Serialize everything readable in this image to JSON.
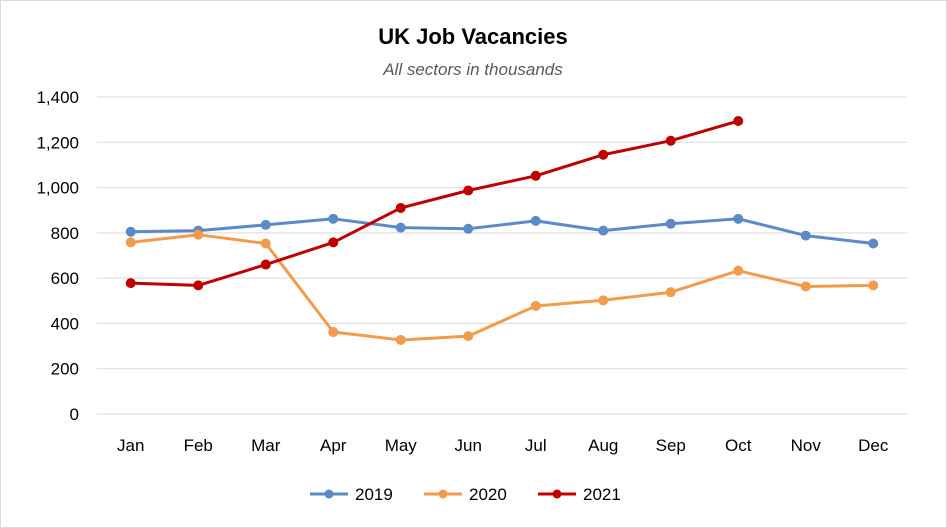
{
  "chart_data": {
    "type": "line",
    "title": "UK Job Vacancies",
    "subtitle": "All sectors in thousands",
    "xlabel": "",
    "ylabel": "",
    "categories": [
      "Jan",
      "Feb",
      "Mar",
      "Apr",
      "May",
      "Jun",
      "Jul",
      "Aug",
      "Sep",
      "Oct",
      "Nov",
      "Dec"
    ],
    "ylim": [
      0,
      1400
    ],
    "yticks": [
      "0",
      "200",
      "400",
      "600",
      "800",
      "1,000",
      "1,200",
      "1,400"
    ],
    "grid": true,
    "legend_position": "bottom",
    "series": [
      {
        "name": "2019",
        "color": "#5b8ac6",
        "values": [
          805,
          810,
          835,
          862,
          823,
          818,
          853,
          810,
          840,
          862,
          788,
          753
        ]
      },
      {
        "name": "2020",
        "color": "#f29b4b",
        "values": [
          758,
          792,
          753,
          362,
          327,
          344,
          477,
          502,
          538,
          633,
          563,
          568
        ]
      },
      {
        "name": "2021",
        "color": "#c00000",
        "values": [
          578,
          568,
          660,
          758,
          910,
          987,
          1052,
          1145,
          1207,
          1294,
          null,
          null
        ]
      }
    ]
  }
}
